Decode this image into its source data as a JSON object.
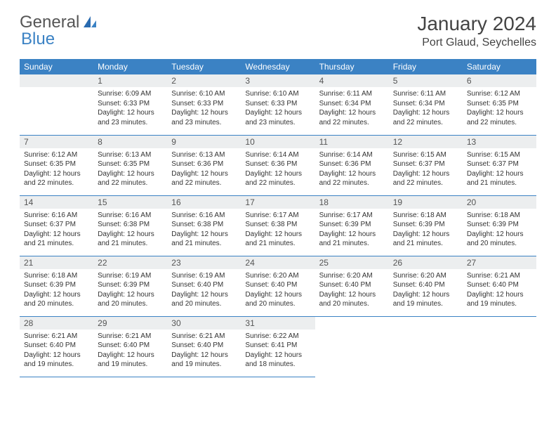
{
  "logo": {
    "text1": "General",
    "text2": "Blue"
  },
  "title": "January 2024",
  "location": "Port Glaud, Seychelles",
  "colors": {
    "header_bg": "#3b82c4",
    "daynum_bg": "#eceeef",
    "border": "#3b82c4"
  },
  "weekdays": [
    "Sunday",
    "Monday",
    "Tuesday",
    "Wednesday",
    "Thursday",
    "Friday",
    "Saturday"
  ],
  "start_offset": 1,
  "days": [
    {
      "n": 1,
      "sunrise": "6:09 AM",
      "sunset": "6:33 PM",
      "daylight": "12 hours and 23 minutes."
    },
    {
      "n": 2,
      "sunrise": "6:10 AM",
      "sunset": "6:33 PM",
      "daylight": "12 hours and 23 minutes."
    },
    {
      "n": 3,
      "sunrise": "6:10 AM",
      "sunset": "6:33 PM",
      "daylight": "12 hours and 23 minutes."
    },
    {
      "n": 4,
      "sunrise": "6:11 AM",
      "sunset": "6:34 PM",
      "daylight": "12 hours and 22 minutes."
    },
    {
      "n": 5,
      "sunrise": "6:11 AM",
      "sunset": "6:34 PM",
      "daylight": "12 hours and 22 minutes."
    },
    {
      "n": 6,
      "sunrise": "6:12 AM",
      "sunset": "6:35 PM",
      "daylight": "12 hours and 22 minutes."
    },
    {
      "n": 7,
      "sunrise": "6:12 AM",
      "sunset": "6:35 PM",
      "daylight": "12 hours and 22 minutes."
    },
    {
      "n": 8,
      "sunrise": "6:13 AM",
      "sunset": "6:35 PM",
      "daylight": "12 hours and 22 minutes."
    },
    {
      "n": 9,
      "sunrise": "6:13 AM",
      "sunset": "6:36 PM",
      "daylight": "12 hours and 22 minutes."
    },
    {
      "n": 10,
      "sunrise": "6:14 AM",
      "sunset": "6:36 PM",
      "daylight": "12 hours and 22 minutes."
    },
    {
      "n": 11,
      "sunrise": "6:14 AM",
      "sunset": "6:36 PM",
      "daylight": "12 hours and 22 minutes."
    },
    {
      "n": 12,
      "sunrise": "6:15 AM",
      "sunset": "6:37 PM",
      "daylight": "12 hours and 22 minutes."
    },
    {
      "n": 13,
      "sunrise": "6:15 AM",
      "sunset": "6:37 PM",
      "daylight": "12 hours and 21 minutes."
    },
    {
      "n": 14,
      "sunrise": "6:16 AM",
      "sunset": "6:37 PM",
      "daylight": "12 hours and 21 minutes."
    },
    {
      "n": 15,
      "sunrise": "6:16 AM",
      "sunset": "6:38 PM",
      "daylight": "12 hours and 21 minutes."
    },
    {
      "n": 16,
      "sunrise": "6:16 AM",
      "sunset": "6:38 PM",
      "daylight": "12 hours and 21 minutes."
    },
    {
      "n": 17,
      "sunrise": "6:17 AM",
      "sunset": "6:38 PM",
      "daylight": "12 hours and 21 minutes."
    },
    {
      "n": 18,
      "sunrise": "6:17 AM",
      "sunset": "6:39 PM",
      "daylight": "12 hours and 21 minutes."
    },
    {
      "n": 19,
      "sunrise": "6:18 AM",
      "sunset": "6:39 PM",
      "daylight": "12 hours and 21 minutes."
    },
    {
      "n": 20,
      "sunrise": "6:18 AM",
      "sunset": "6:39 PM",
      "daylight": "12 hours and 20 minutes."
    },
    {
      "n": 21,
      "sunrise": "6:18 AM",
      "sunset": "6:39 PM",
      "daylight": "12 hours and 20 minutes."
    },
    {
      "n": 22,
      "sunrise": "6:19 AM",
      "sunset": "6:39 PM",
      "daylight": "12 hours and 20 minutes."
    },
    {
      "n": 23,
      "sunrise": "6:19 AM",
      "sunset": "6:40 PM",
      "daylight": "12 hours and 20 minutes."
    },
    {
      "n": 24,
      "sunrise": "6:20 AM",
      "sunset": "6:40 PM",
      "daylight": "12 hours and 20 minutes."
    },
    {
      "n": 25,
      "sunrise": "6:20 AM",
      "sunset": "6:40 PM",
      "daylight": "12 hours and 20 minutes."
    },
    {
      "n": 26,
      "sunrise": "6:20 AM",
      "sunset": "6:40 PM",
      "daylight": "12 hours and 19 minutes."
    },
    {
      "n": 27,
      "sunrise": "6:21 AM",
      "sunset": "6:40 PM",
      "daylight": "12 hours and 19 minutes."
    },
    {
      "n": 28,
      "sunrise": "6:21 AM",
      "sunset": "6:40 PM",
      "daylight": "12 hours and 19 minutes."
    },
    {
      "n": 29,
      "sunrise": "6:21 AM",
      "sunset": "6:40 PM",
      "daylight": "12 hours and 19 minutes."
    },
    {
      "n": 30,
      "sunrise": "6:21 AM",
      "sunset": "6:40 PM",
      "daylight": "12 hours and 19 minutes."
    },
    {
      "n": 31,
      "sunrise": "6:22 AM",
      "sunset": "6:41 PM",
      "daylight": "12 hours and 18 minutes."
    }
  ]
}
